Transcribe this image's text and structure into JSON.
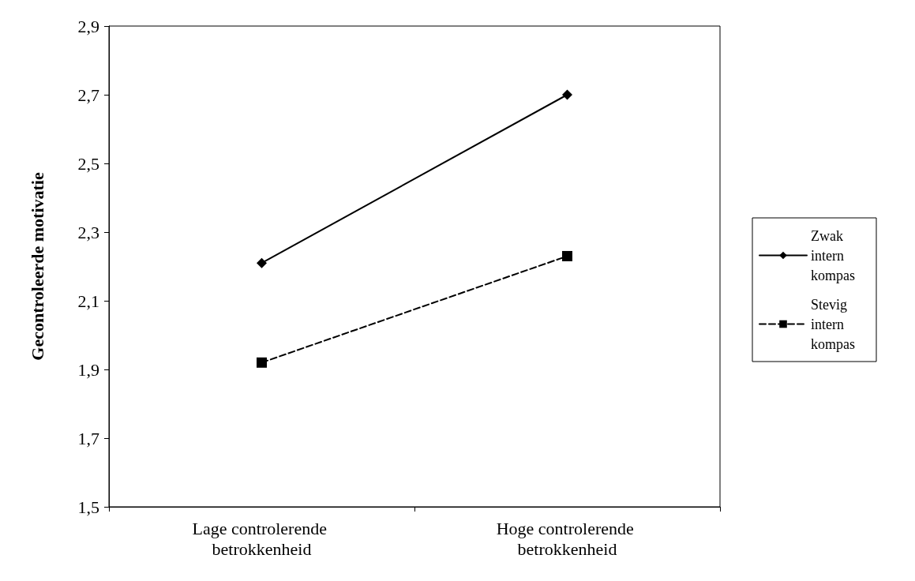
{
  "chart_data": {
    "type": "line",
    "ylabel": "Gecontroleerde motivatie",
    "categories": [
      "Lage controlerende betrokkenheid",
      "Hoge controlerende betrokkenheid"
    ],
    "series": [
      {
        "name": "Zwak intern kompas",
        "color": "#000000",
        "values": [
          2.21,
          2.7
        ],
        "marker": "diamond",
        "line_style": "solid"
      },
      {
        "name": "Stevig intern kompas",
        "color": "#000000",
        "values": [
          1.92,
          2.23
        ],
        "marker": "square",
        "line_style": "dashed"
      }
    ],
    "ylim": [
      1.5,
      2.9
    ],
    "yticks": [
      {
        "value": 1.5,
        "label": "1,5"
      },
      {
        "value": 1.7,
        "label": "1,7"
      },
      {
        "value": 1.9,
        "label": "1,9"
      },
      {
        "value": 2.1,
        "label": "2,1"
      },
      {
        "value": 2.3,
        "label": "2,3"
      },
      {
        "value": 2.5,
        "label": "2,5"
      },
      {
        "value": 2.7,
        "label": "2,7"
      },
      {
        "value": 2.9,
        "label": "2,9"
      }
    ],
    "grid": false,
    "legend": "right"
  }
}
